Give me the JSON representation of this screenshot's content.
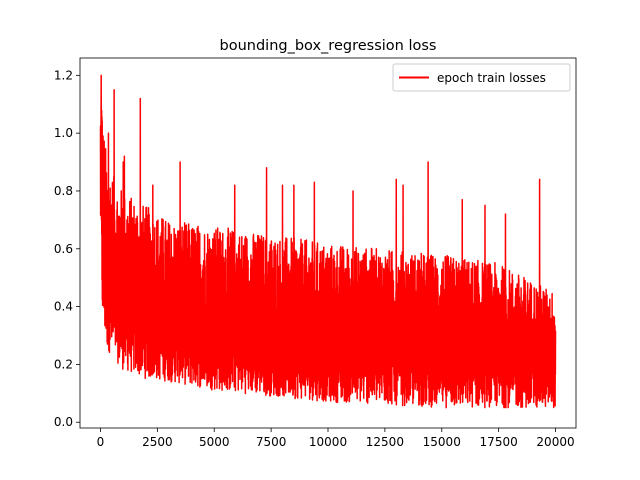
{
  "chart_data": {
    "type": "line",
    "title": "bounding_box_regression loss",
    "xlabel": "",
    "ylabel": "",
    "xlim": [
      -900,
      20900
    ],
    "ylim": [
      -0.02,
      1.26
    ],
    "x_ticks": [
      0,
      2500,
      5000,
      7500,
      10000,
      12500,
      15000,
      17500,
      20000
    ],
    "x_tick_labels": [
      "0",
      "2500",
      "5000",
      "7500",
      "10000",
      "12500",
      "15000",
      "17500",
      "20000"
    ],
    "y_ticks": [
      0.0,
      0.2,
      0.4,
      0.6,
      0.8,
      1.0,
      1.2
    ],
    "y_tick_labels": [
      "0.0",
      "0.2",
      "0.4",
      "0.6",
      "0.8",
      "1.0",
      "1.2"
    ],
    "legend": {
      "placement": "top-right",
      "entries": [
        "epoch train losses"
      ]
    },
    "grid": false,
    "series": [
      {
        "name": "epoch train losses",
        "color": "#ff0000",
        "x_range": [
          0,
          20000
        ],
        "envelope": {
          "x": [
            0,
            50,
            100,
            300,
            600,
            1000,
            2000,
            3000,
            5000,
            7500,
            10000,
            12500,
            15000,
            17500,
            20000
          ],
          "low": [
            0.7,
            0.45,
            0.33,
            0.25,
            0.22,
            0.18,
            0.15,
            0.14,
            0.11,
            0.09,
            0.07,
            0.06,
            0.05,
            0.05,
            0.05
          ],
          "high": [
            1.1,
            1.2,
            1.05,
            0.9,
            0.85,
            0.8,
            0.75,
            0.7,
            0.68,
            0.65,
            0.62,
            0.6,
            0.58,
            0.55,
            0.45
          ]
        },
        "spikes": [
          {
            "x": 30,
            "y": 1.2
          },
          {
            "x": 350,
            "y": 1.0
          },
          {
            "x": 600,
            "y": 1.15
          },
          {
            "x": 1000,
            "y": 0.9
          },
          {
            "x": 1050,
            "y": 0.92
          },
          {
            "x": 1750,
            "y": 1.12
          },
          {
            "x": 2300,
            "y": 0.82
          },
          {
            "x": 3500,
            "y": 0.9
          },
          {
            "x": 5900,
            "y": 0.82
          },
          {
            "x": 7300,
            "y": 0.88
          },
          {
            "x": 8000,
            "y": 0.82
          },
          {
            "x": 8500,
            "y": 0.82
          },
          {
            "x": 9400,
            "y": 0.83
          },
          {
            "x": 11100,
            "y": 0.8
          },
          {
            "x": 13000,
            "y": 0.84
          },
          {
            "x": 13300,
            "y": 0.82
          },
          {
            "x": 14400,
            "y": 0.9
          },
          {
            "x": 15900,
            "y": 0.77
          },
          {
            "x": 16900,
            "y": 0.75
          },
          {
            "x": 17800,
            "y": 0.72
          },
          {
            "x": 19300,
            "y": 0.84
          }
        ]
      }
    ]
  }
}
